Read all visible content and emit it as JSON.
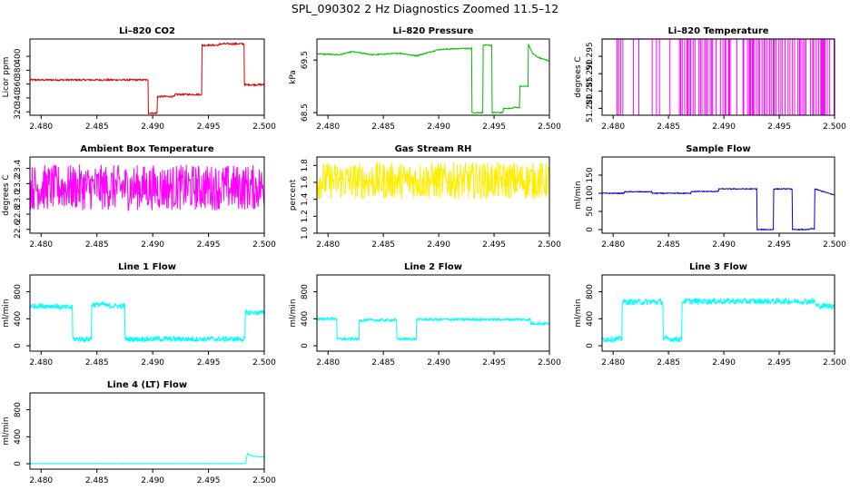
{
  "title": "SPL_090302  2 Hz Diagnostics Zoomed 11.5–12",
  "chart_data": [
    {
      "type": "line",
      "title": "Li–820 CO2",
      "xlabel": "",
      "ylabel": "Licor ppm",
      "color": "#dd0000",
      "xlim": [
        2.479,
        2.5
      ],
      "ylim": [
        315,
        425
      ],
      "xticks": [
        2.48,
        2.485,
        2.49,
        2.495,
        2.5
      ],
      "xtick_labels": [
        "2.480",
        "2.485",
        "2.490",
        "2.495",
        "2.500"
      ],
      "yticks": [
        320,
        340,
        360,
        380,
        400
      ],
      "ytick_labels": [
        "320",
        "340",
        "360",
        "380",
        "400"
      ],
      "series": [
        {
          "x": [
            2.479,
            2.4896,
            2.4896,
            2.4904,
            2.4904,
            2.492,
            2.492,
            2.4944,
            2.4944,
            2.496,
            2.496,
            2.4982,
            2.4982,
            2.5
          ],
          "y": [
            366,
            366,
            318,
            318,
            342,
            342,
            345,
            345,
            416,
            416,
            418,
            418,
            359,
            359
          ],
          "noise": 1.2
        }
      ]
    },
    {
      "type": "line",
      "title": "Li–820 Pressure",
      "xlabel": "",
      "ylabel": "kPa",
      "color": "#00bb00",
      "xlim": [
        2.479,
        2.5
      ],
      "ylim": [
        68.45,
        69.9
      ],
      "xticks": [
        2.48,
        2.485,
        2.49,
        2.495,
        2.5
      ],
      "xtick_labels": [
        "2.480",
        "2.485",
        "2.490",
        "2.495",
        "2.500"
      ],
      "yticks": [
        68.5,
        69.5
      ],
      "ytick_labels": [
        "68.5",
        "69.5"
      ],
      "series": [
        {
          "x": [
            2.479,
            2.481,
            2.4822,
            2.484,
            2.4865,
            2.488,
            2.49,
            2.492,
            2.493,
            2.493,
            2.494,
            2.494,
            2.4948,
            2.4948,
            2.4958,
            2.4958,
            2.4967,
            2.4967,
            2.4973,
            2.4973,
            2.4981,
            2.4981,
            2.4985,
            2.499,
            2.5
          ],
          "y": [
            69.62,
            69.6,
            69.66,
            69.6,
            69.63,
            69.58,
            69.7,
            69.72,
            69.72,
            68.5,
            68.5,
            69.78,
            69.78,
            68.5,
            68.5,
            68.58,
            68.58,
            68.6,
            68.6,
            69.0,
            69.0,
            69.8,
            69.62,
            69.55,
            69.48
          ],
          "noise": 0.01
        }
      ]
    },
    {
      "type": "line",
      "title": "Li–820 Temperature",
      "xlabel": "",
      "ylabel": "degrees C",
      "color": "#ff00ff",
      "xlim": [
        2.479,
        2.5
      ],
      "ylim": [
        51.278,
        51.3
      ],
      "xticks": [
        2.48,
        2.485,
        2.49,
        2.495,
        2.5
      ],
      "xtick_labels": [
        "2.480",
        "2.485",
        "2.490",
        "2.495",
        "2.500"
      ],
      "yticks": [
        51.28,
        51.285,
        51.29,
        51.295
      ],
      "ytick_labels": [
        "51.280",
        "51.285",
        "51.290",
        "51.295"
      ],
      "series": [
        {
          "x": [],
          "y": [],
          "levels": [
            51.3,
            51.278
          ]
        }
      ]
    },
    {
      "type": "line",
      "title": "Ambient Box Temperature",
      "xlabel": "",
      "ylabel": "degrees C",
      "color": "#ff00ff",
      "xlim": [
        2.479,
        2.5
      ],
      "ylim": [
        22.55,
        23.55
      ],
      "xticks": [
        2.48,
        2.485,
        2.49,
        2.495,
        2.5
      ],
      "xtick_labels": [
        "2.480",
        "2.485",
        "2.490",
        "2.495",
        "2.500"
      ],
      "yticks": [
        22.6,
        22.8,
        23.0,
        23.2,
        23.4
      ],
      "ytick_labels": [
        "22.6",
        "22.8",
        "23.0",
        "23.2",
        "23.4"
      ],
      "series": [
        {
          "x": [
            2.479,
            2.5
          ],
          "y": [
            23.15,
            23.15
          ],
          "noise": 0.3
        }
      ]
    },
    {
      "type": "line",
      "title": "Gas Stream RH",
      "xlabel": "",
      "ylabel": "percent",
      "color": "#ffee00",
      "xlim": [
        2.479,
        2.5
      ],
      "ylim": [
        1.0,
        1.9
      ],
      "xticks": [
        2.48,
        2.485,
        2.49,
        2.495,
        2.5
      ],
      "xtick_labels": [
        "2.480",
        "2.485",
        "2.490",
        "2.495",
        "2.500"
      ],
      "yticks": [
        1.0,
        1.2,
        1.4,
        1.6,
        1.8
      ],
      "ytick_labels": [
        "1.0",
        "1.2",
        "1.4",
        "1.6",
        "1.8"
      ],
      "series": [
        {
          "x": [
            2.479,
            2.5
          ],
          "y": [
            1.62,
            1.62
          ],
          "noise": 0.22
        }
      ]
    },
    {
      "type": "line",
      "title": "Sample Flow",
      "xlabel": "",
      "ylabel": "ml/min",
      "color": "#0000cc",
      "xlim": [
        2.479,
        2.5
      ],
      "ylim": [
        -10,
        200
      ],
      "xticks": [
        2.48,
        2.485,
        2.49,
        2.495,
        2.5
      ],
      "xtick_labels": [
        "2.480",
        "2.485",
        "2.490",
        "2.495",
        "2.500"
      ],
      "yticks": [
        0,
        50,
        100,
        150
      ],
      "ytick_labels": [
        "0",
        "50",
        "100",
        "150"
      ],
      "series": [
        {
          "x": [
            2.479,
            2.481,
            2.481,
            2.4835,
            2.4835,
            2.487,
            2.487,
            2.4895,
            2.4895,
            2.493,
            2.493,
            2.4945,
            2.4945,
            2.4962,
            2.4962,
            2.4977,
            2.4977,
            2.4982,
            2.4982,
            2.5
          ],
          "y": [
            100,
            100,
            104,
            104,
            100,
            100,
            105,
            105,
            112,
            112,
            0,
            0,
            112,
            112,
            0,
            0,
            2,
            2,
            112,
            95
          ],
          "noise": 1.2
        }
      ]
    },
    {
      "type": "line",
      "title": "Line 1 Flow",
      "xlabel": "",
      "ylabel": "ml/min",
      "color": "#00ffff",
      "xlim": [
        2.479,
        2.5
      ],
      "ylim": [
        -80,
        1050
      ],
      "xticks": [
        2.48,
        2.485,
        2.49,
        2.495,
        2.5
      ],
      "xtick_labels": [
        "2.480",
        "2.485",
        "2.490",
        "2.495",
        "2.500"
      ],
      "yticks": [
        0,
        400,
        800
      ],
      "ytick_labels": [
        "0",
        "400",
        "800"
      ],
      "series": [
        {
          "x": [
            2.479,
            2.4815,
            2.4815,
            2.4828,
            2.4828,
            2.4845,
            2.4845,
            2.4858,
            2.4858,
            2.4875,
            2.4875,
            2.4983,
            2.4983,
            2.5
          ],
          "y": [
            590,
            590,
            570,
            570,
            100,
            100,
            610,
            610,
            590,
            590,
            100,
            100,
            490,
            490
          ],
          "noise": 40
        }
      ]
    },
    {
      "type": "line",
      "title": "Line 2 Flow",
      "xlabel": "",
      "ylabel": "ml/min",
      "color": "#00ffff",
      "xlim": [
        2.479,
        2.5
      ],
      "ylim": [
        -80,
        1050
      ],
      "xticks": [
        2.48,
        2.485,
        2.49,
        2.495,
        2.5
      ],
      "xtick_labels": [
        "2.480",
        "2.485",
        "2.490",
        "2.495",
        "2.500"
      ],
      "yticks": [
        0,
        400,
        800
      ],
      "ytick_labels": [
        "0",
        "400",
        "800"
      ],
      "series": [
        {
          "x": [
            2.479,
            2.4808,
            2.4808,
            2.4828,
            2.4828,
            2.4862,
            2.4862,
            2.488,
            2.488,
            2.4983,
            2.4983,
            2.5
          ],
          "y": [
            400,
            400,
            100,
            100,
            380,
            380,
            100,
            100,
            390,
            390,
            330,
            330
          ],
          "noise": 20
        }
      ]
    },
    {
      "type": "line",
      "title": "Line 3 Flow",
      "xlabel": "",
      "ylabel": "ml/min",
      "color": "#00ffff",
      "xlim": [
        2.479,
        2.5
      ],
      "ylim": [
        -80,
        1050
      ],
      "xticks": [
        2.48,
        2.485,
        2.49,
        2.495,
        2.5
      ],
      "xtick_labels": [
        "2.480",
        "2.485",
        "2.490",
        "2.495",
        "2.500"
      ],
      "yticks": [
        0,
        400,
        800
      ],
      "ytick_labels": [
        "0",
        "400",
        "800"
      ],
      "series": [
        {
          "x": [
            2.479,
            2.4808,
            2.4808,
            2.4845,
            2.4845,
            2.4862,
            2.4862,
            2.4983,
            2.4983,
            2.5
          ],
          "y": [
            100,
            100,
            650,
            650,
            100,
            100,
            660,
            660,
            590,
            590
          ],
          "noise": 45
        }
      ]
    },
    {
      "type": "line",
      "title": "Line 4 (LT) Flow",
      "xlabel": "",
      "ylabel": "ml/min",
      "color": "#00ffff",
      "xlim": [
        2.479,
        2.5
      ],
      "ylim": [
        -80,
        1050
      ],
      "xticks": [
        2.48,
        2.485,
        2.49,
        2.495,
        2.5
      ],
      "xtick_labels": [
        "2.480",
        "2.485",
        "2.490",
        "2.495",
        "2.500"
      ],
      "yticks": [
        0,
        400,
        800
      ],
      "ytick_labels": [
        "0",
        "400",
        "800"
      ],
      "series": [
        {
          "x": [
            2.479,
            2.4983,
            2.4985,
            2.499,
            2.5
          ],
          "y": [
            2,
            2,
            150,
            110,
            100
          ],
          "noise": 3
        }
      ]
    }
  ]
}
